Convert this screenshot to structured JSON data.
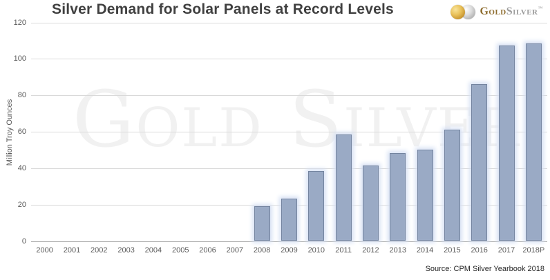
{
  "header": {
    "title": "Silver Demand for Solar Panels at Record Levels",
    "logo": {
      "gold_icon": "gold-coin",
      "silver_icon": "silver-coin",
      "gold_text": "Gold",
      "silver_text": "Silver",
      "trademark": "™"
    }
  },
  "watermark_text": "Gold Silver",
  "source_text": "Source: CPM Silver Yearbook 2018",
  "chart_data": {
    "type": "bar",
    "title": "Silver Demand for Solar Panels at Record Levels",
    "categories": [
      "2000",
      "2001",
      "2002",
      "2003",
      "2004",
      "2005",
      "2006",
      "2007",
      "2008",
      "2009",
      "2010",
      "2011",
      "2012",
      "2013",
      "2014",
      "2015",
      "2016",
      "2017",
      "2018P"
    ],
    "values": [
      0,
      0,
      0,
      0,
      0,
      0,
      0,
      0,
      19.5,
      23.5,
      38.5,
      58.5,
      41.5,
      48.5,
      50.5,
      61.5,
      86.5,
      107.5,
      108.5
    ],
    "xlabel": "",
    "ylabel": "Million Troy Ounces",
    "ylim": [
      0,
      120
    ],
    "yticks": [
      0,
      20,
      40,
      60,
      80,
      100,
      120
    ],
    "grid": "horizontal",
    "legend_position": "none",
    "colors": {
      "bar_fill": "#9aaac5",
      "bar_border": "#74849f",
      "bar_glow": "#d7e1f4",
      "gridline": "#d9d9d9",
      "axis_text": "#595959",
      "title_text": "#404040",
      "watermark": "#f1f1f1",
      "logo_gold": "#8e6d2f",
      "logo_silver": "#9b9b9b"
    }
  }
}
